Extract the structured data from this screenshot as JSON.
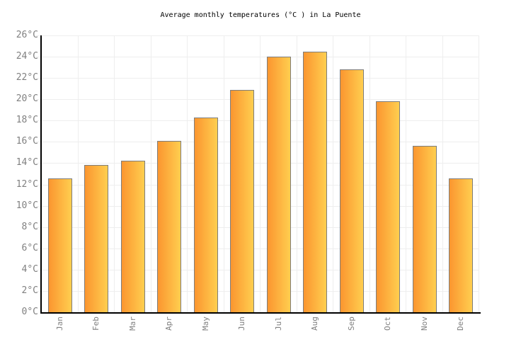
{
  "chart_data": {
    "type": "bar",
    "title": "Average monthly temperatures (°C ) in La Puente",
    "categories": [
      "Jan",
      "Feb",
      "Mar",
      "Apr",
      "May",
      "Jun",
      "Jul",
      "Aug",
      "Sep",
      "Oct",
      "Nov",
      "Dec"
    ],
    "values": [
      12.6,
      13.8,
      14.2,
      16.1,
      18.3,
      20.9,
      24.0,
      24.5,
      22.8,
      19.8,
      15.6,
      12.6
    ],
    "unit": "°C",
    "xlabel": "",
    "ylabel": "",
    "ylim": [
      0,
      26
    ],
    "y_tick_step": 2,
    "y_tick_labels": [
      "0°C",
      "2°C",
      "4°C",
      "6°C",
      "8°C",
      "10°C",
      "12°C",
      "14°C",
      "16°C",
      "18°C",
      "20°C",
      "22°C",
      "24°C",
      "26°C"
    ],
    "grid": true,
    "legend": false,
    "colors": {
      "bar_gradient_left": "#FB9630",
      "bar_gradient_right": "#FFCE4F",
      "bar_border": "#7d7d7d",
      "axis": "#000000",
      "grid": "#eeeeee",
      "tick_label": "#808080",
      "title": "#000000",
      "background": "#ffffff"
    }
  }
}
